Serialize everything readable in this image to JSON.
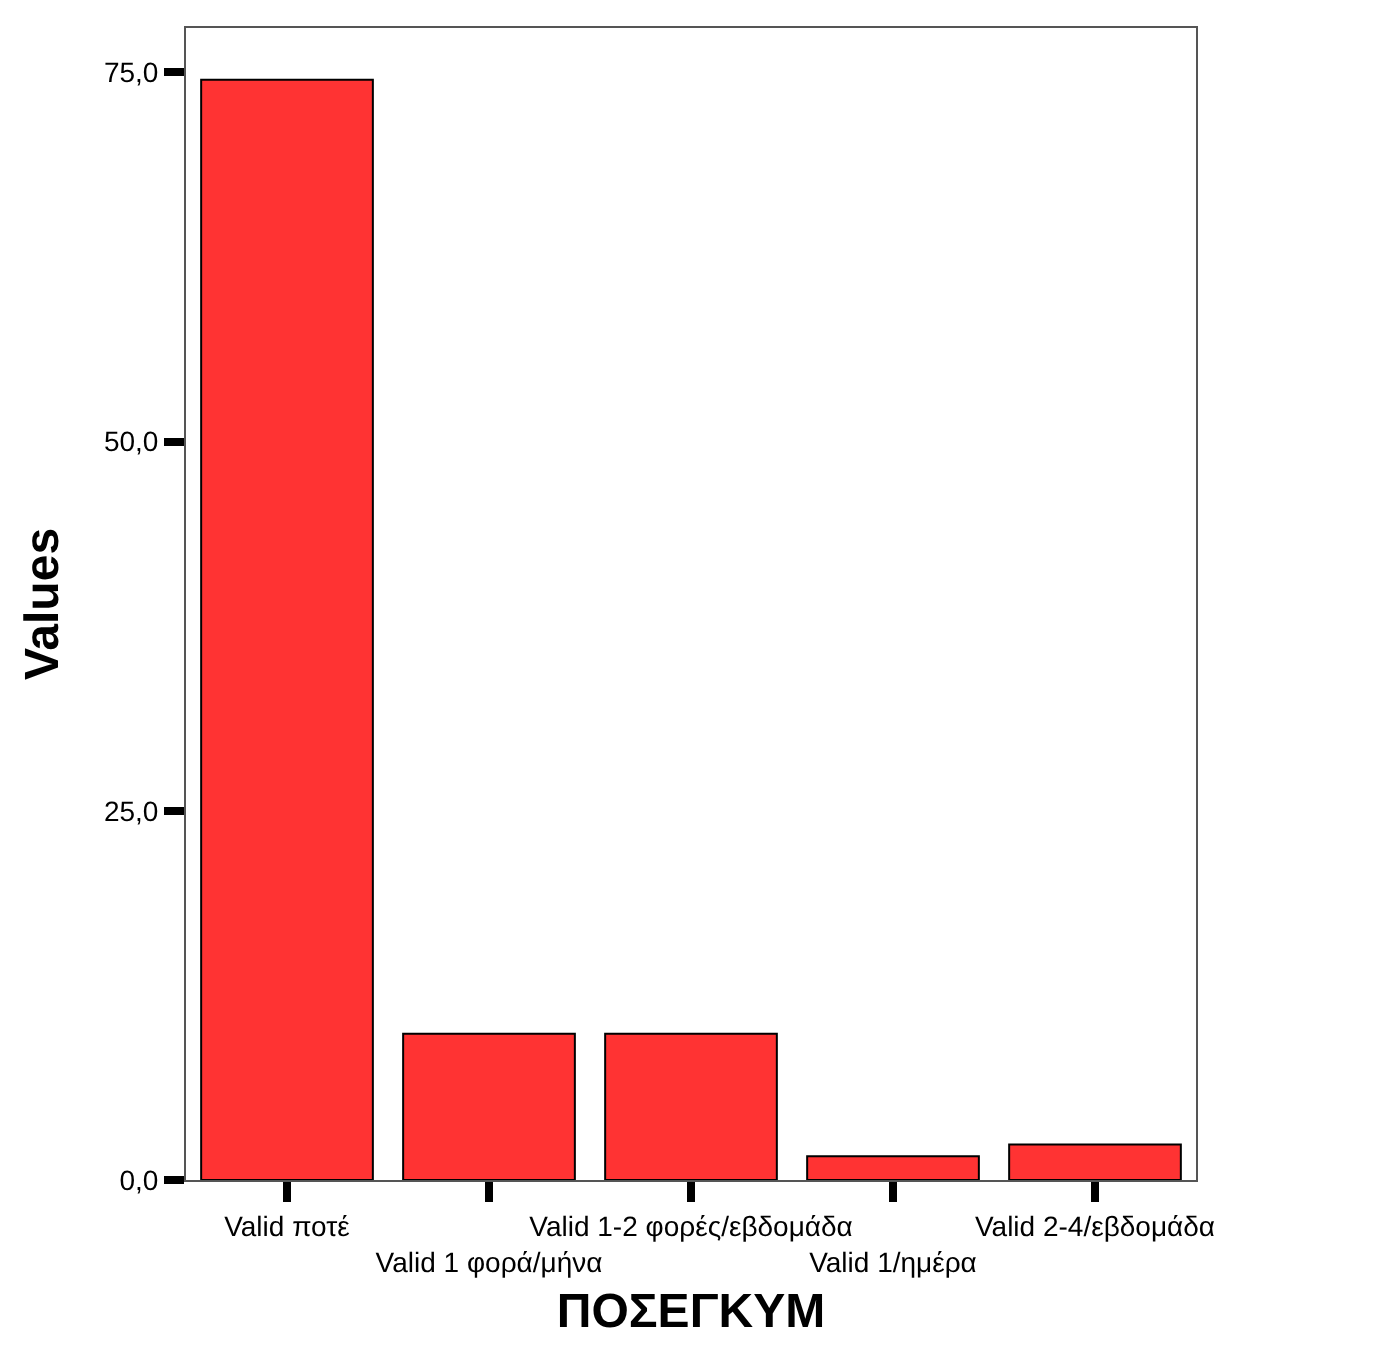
{
  "chart_data": {
    "type": "bar",
    "xlabel": "ΠΟΣΕΓΚΥΜ",
    "ylabel": "Values",
    "categories": [
      "Valid ποτέ",
      "Valid 1 φορά/μήνα",
      "Valid 1-2 φορές/εβδομάδα",
      "Valid 1/ημέρα",
      "Valid 2-4/εβδομάδα"
    ],
    "values": [
      74.5,
      9.9,
      9.9,
      1.6,
      2.4
    ],
    "color": "#ff3333",
    "ylim": [
      0,
      78
    ],
    "yticks": [
      {
        "value": 0,
        "label": "0,0"
      },
      {
        "value": 25,
        "label": "25,0"
      },
      {
        "value": 50,
        "label": "50,0"
      },
      {
        "value": 75,
        "label": "75,0"
      }
    ]
  }
}
